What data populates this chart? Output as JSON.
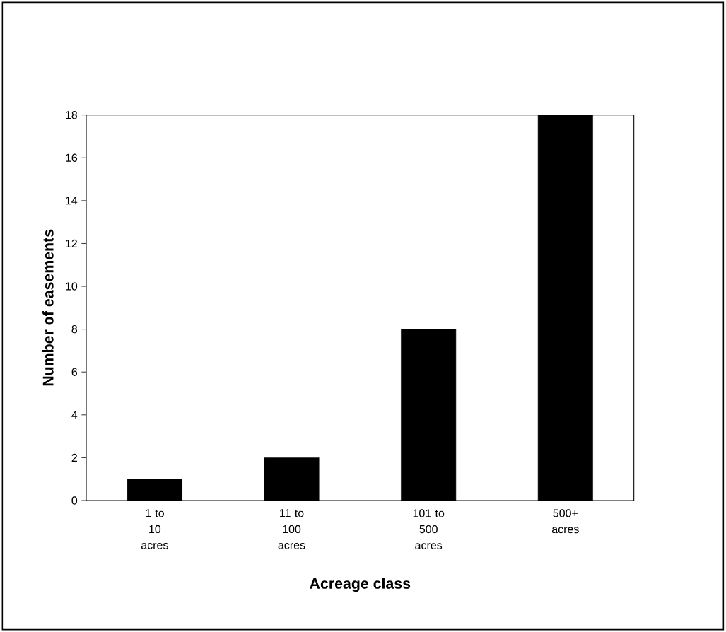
{
  "chart_data": {
    "type": "bar",
    "xlabel": "Acreage class",
    "ylabel": "Number of easements",
    "categories": [
      "1 to 10 acres",
      "11 to 100 acres",
      "101 to 500 acres",
      "500+ acres"
    ],
    "values": [
      1,
      2,
      8,
      18
    ],
    "color": "#000000",
    "ylim": [
      0,
      18
    ],
    "yticks": [
      0,
      2,
      4,
      6,
      8,
      10,
      12,
      14,
      16,
      18
    ],
    "grid": false
  }
}
